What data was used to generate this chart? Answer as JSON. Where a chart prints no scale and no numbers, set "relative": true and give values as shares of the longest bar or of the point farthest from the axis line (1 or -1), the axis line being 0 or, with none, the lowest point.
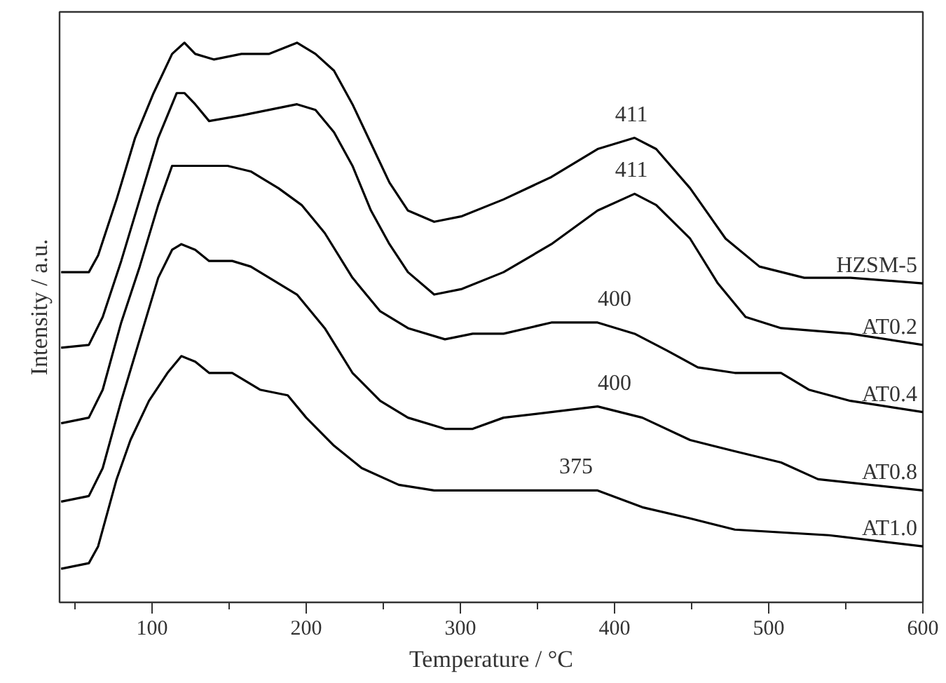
{
  "chart_data": {
    "type": "line",
    "xlabel": "Temperature / °C",
    "ylabel": "Intensity / a.u.",
    "relative": true,
    "xlim": [
      40,
      600
    ],
    "xticks": [
      100,
      200,
      300,
      400,
      500,
      600
    ],
    "grid": false,
    "marker": "none",
    "line_style": "solid",
    "series": [
      {
        "name": "HZSM-5",
        "color": "#000000",
        "x": [
          41,
          59,
          65,
          77,
          89,
          101,
          113,
          121,
          128,
          140,
          158,
          176,
          194,
          206,
          218,
          230,
          242,
          254,
          266,
          283,
          301,
          328,
          359,
          389,
          413,
          427,
          449,
          472,
          494,
          523,
          553,
          600
        ],
        "values": [
          0.59,
          0.59,
          0.62,
          0.72,
          0.83,
          0.91,
          0.98,
          1.0,
          0.98,
          0.97,
          0.98,
          0.98,
          1.0,
          0.98,
          0.95,
          0.89,
          0.82,
          0.75,
          0.7,
          0.68,
          0.69,
          0.72,
          0.76,
          0.81,
          0.83,
          0.81,
          0.74,
          0.65,
          0.6,
          0.58,
          0.58,
          0.57
        ]
      },
      {
        "name": "AT0.2",
        "color": "#000000",
        "x": [
          41,
          59,
          68,
          80,
          92,
          104,
          116,
          121,
          128,
          137,
          158,
          176,
          194,
          206,
          218,
          230,
          242,
          254,
          266,
          283,
          301,
          328,
          359,
          389,
          413,
          427,
          449,
          467,
          485,
          508,
          553,
          600
        ],
        "values": [
          0.455,
          0.46,
          0.51,
          0.61,
          0.72,
          0.83,
          0.91,
          0.91,
          0.89,
          0.86,
          0.87,
          0.88,
          0.89,
          0.88,
          0.84,
          0.78,
          0.7,
          0.64,
          0.59,
          0.55,
          0.56,
          0.59,
          0.64,
          0.7,
          0.73,
          0.71,
          0.65,
          0.57,
          0.51,
          0.49,
          0.48,
          0.46
        ]
      },
      {
        "name": "AT0.4",
        "color": "#000000",
        "x": [
          41,
          59,
          68,
          80,
          92,
          104,
          113,
          122,
          134,
          149,
          164,
          182,
          197,
          212,
          230,
          248,
          266,
          290,
          308,
          328,
          359,
          389,
          413,
          434,
          454,
          478,
          508,
          526,
          553,
          600
        ],
        "values": [
          0.32,
          0.33,
          0.38,
          0.5,
          0.6,
          0.71,
          0.78,
          0.78,
          0.78,
          0.78,
          0.77,
          0.74,
          0.71,
          0.66,
          0.58,
          0.52,
          0.49,
          0.47,
          0.48,
          0.48,
          0.5,
          0.5,
          0.48,
          0.45,
          0.42,
          0.41,
          0.41,
          0.38,
          0.36,
          0.34
        ]
      },
      {
        "name": "AT0.8",
        "color": "#000000",
        "x": [
          41,
          59,
          68,
          80,
          92,
          104,
          113,
          119,
          128,
          137,
          152,
          164,
          182,
          194,
          212,
          230,
          248,
          266,
          290,
          308,
          328,
          359,
          389,
          418,
          449,
          478,
          508,
          532,
          600
        ],
        "values": [
          0.18,
          0.19,
          0.24,
          0.36,
          0.47,
          0.58,
          0.63,
          0.64,
          0.63,
          0.61,
          0.61,
          0.6,
          0.57,
          0.55,
          0.49,
          0.41,
          0.36,
          0.33,
          0.31,
          0.31,
          0.33,
          0.34,
          0.35,
          0.33,
          0.29,
          0.27,
          0.25,
          0.22,
          0.2
        ]
      },
      {
        "name": "AT1.0",
        "color": "#000000",
        "x": [
          41,
          59,
          65,
          77,
          86,
          98,
          110,
          119,
          128,
          137,
          152,
          170,
          188,
          200,
          218,
          236,
          260,
          283,
          308,
          328,
          359,
          389,
          418,
          449,
          478,
          539,
          600
        ],
        "values": [
          0.06,
          0.07,
          0.1,
          0.22,
          0.29,
          0.36,
          0.41,
          0.44,
          0.43,
          0.41,
          0.41,
          0.38,
          0.37,
          0.33,
          0.28,
          0.24,
          0.21,
          0.2,
          0.2,
          0.2,
          0.2,
          0.2,
          0.17,
          0.15,
          0.13,
          0.12,
          0.1
        ]
      }
    ],
    "annotations": [
      {
        "text": "411",
        "x": 411,
        "y": 0.83
      },
      {
        "text": "411",
        "x": 411,
        "y": 0.73
      },
      {
        "text": "400",
        "x": 400,
        "y": 0.5
      },
      {
        "text": "400",
        "x": 400,
        "y": 0.35
      },
      {
        "text": "375",
        "x": 375,
        "y": 0.2
      }
    ]
  }
}
